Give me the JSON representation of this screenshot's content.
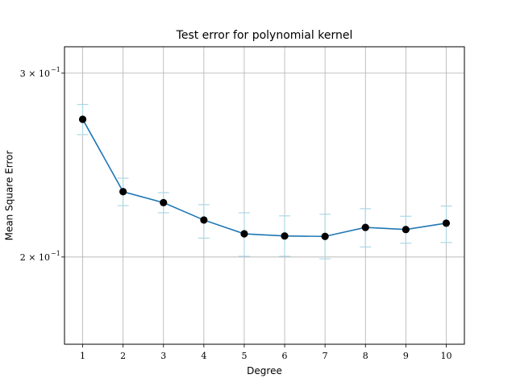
{
  "chart_data": {
    "type": "line",
    "title": "Test error for polynomial kernel",
    "xlabel": "Degree",
    "ylabel": "Mean Square Error",
    "x": [
      1,
      2,
      3,
      4,
      5,
      6,
      7,
      8,
      9,
      10
    ],
    "y_scale": "log",
    "ylim": [
      0.165,
      0.318
    ],
    "xlim": [
      0.55,
      10.45
    ],
    "grid": true,
    "x_tick_labels": [
      "1",
      "2",
      "3",
      "4",
      "5",
      "6",
      "7",
      "8",
      "9",
      "10"
    ],
    "y_ticks": [
      {
        "value": 0.2,
        "base": "2",
        "mantissa_label": "2 × 10",
        "exponent": "−1"
      },
      {
        "value": 0.3,
        "base": "3",
        "mantissa_label": "3 × 10",
        "exponent": "−1"
      }
    ],
    "series": [
      {
        "values": [
          0.271,
          0.231,
          0.2255,
          0.217,
          0.2105,
          0.2095,
          0.2093,
          0.2135,
          0.2125,
          0.2155
        ],
        "error_low": [
          0.262,
          0.224,
          0.2205,
          0.2085,
          0.2003,
          0.2003,
          0.1992,
          0.2045,
          0.2062,
          0.2065
        ],
        "error_high": [
          0.28,
          0.238,
          0.2305,
          0.2245,
          0.2205,
          0.219,
          0.2198,
          0.2225,
          0.2188,
          0.2238
        ],
        "color": "#1f77b4",
        "marker_color": "#000000",
        "error_color": "#add8e6"
      }
    ]
  }
}
